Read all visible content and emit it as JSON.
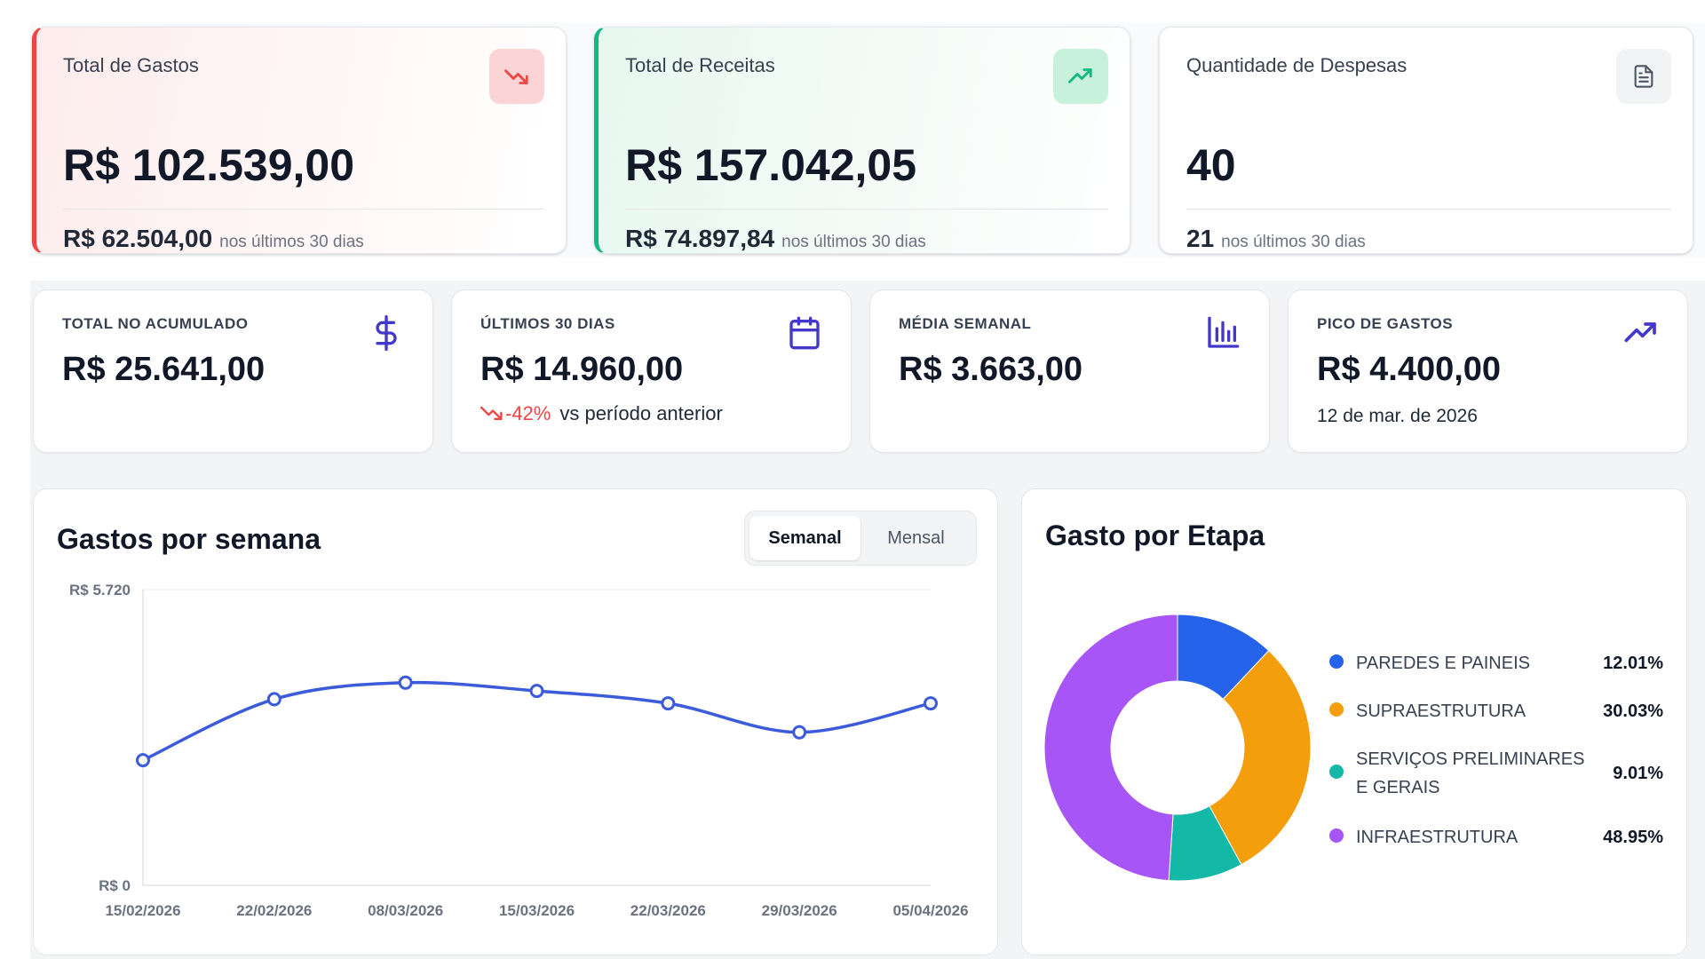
{
  "summary_cards": [
    {
      "label": "Total de Gastos",
      "value": "R$ 102.539,00",
      "sub_value": "R$ 62.504,00",
      "sub_note": "nos últimos 30 dias",
      "icon": "trending-down-icon",
      "accent": "#ef4444"
    },
    {
      "label": "Total de Receitas",
      "value": "R$ 157.042,05",
      "sub_value": "R$ 74.897,84",
      "sub_note": "nos últimos 30 dias",
      "icon": "trending-up-icon",
      "accent": "#10b981"
    },
    {
      "label": "Quantidade de Despesas",
      "value": "40",
      "sub_value": "21",
      "sub_note": "nos últimos 30 dias",
      "icon": "document-icon",
      "accent": "#6b7280"
    }
  ],
  "kpis": [
    {
      "label": "TOTAL NO ACUMULADO",
      "value": "R$ 25.641,00",
      "icon": "dollar-icon"
    },
    {
      "label": "ÚLTIMOS 30 DIAS",
      "value": "R$ 14.960,00",
      "change": "-42%",
      "change_note": "vs período anterior",
      "icon": "calendar-icon"
    },
    {
      "label": "MÉDIA SEMANAL",
      "value": "R$ 3.663,00",
      "icon": "bar-chart-icon"
    },
    {
      "label": "PICO DE GASTOS",
      "value": "R$ 4.400,00",
      "note": "12 de mar. de 2026",
      "icon": "trending-up-icon"
    }
  ],
  "colors": {
    "accent_purple": "#4338ca",
    "line_blue": "#3b5bdb",
    "negative": "#ef4444"
  },
  "weekly_chart": {
    "title": "Gastos por semana",
    "toggle": {
      "options": [
        "Semanal",
        "Mensal"
      ],
      "selected": "Semanal"
    },
    "y_labels": [
      "R$ 5.720",
      "R$ 0"
    ]
  },
  "stage_chart": {
    "title": "Gasto por Etapa"
  },
  "chart_data": [
    {
      "type": "line",
      "title": "Gastos por semana",
      "x": [
        "15/02/2026",
        "22/02/2026",
        "08/03/2026",
        "15/03/2026",
        "22/03/2026",
        "29/03/2026",
        "05/04/2026"
      ],
      "series": [
        {
          "values": [
            2420,
            3600,
            3920,
            3760,
            3520,
            2960,
            3520
          ]
        }
      ],
      "ylim": [
        0,
        5720
      ],
      "y_tick_labels": [
        "R$ 5.720",
        "R$ 0"
      ],
      "grid": false,
      "color": "#3b5bdb"
    },
    {
      "type": "pie",
      "title": "Gasto por Etapa",
      "donut": true,
      "categories": [
        "PAREDES E PAINEIS",
        "SUPRAESTRUTURA",
        "SERVIÇOS PRELIMINARES E GERAIS",
        "INFRAESTRUTURA"
      ],
      "values": [
        12.01,
        30.03,
        9.01,
        48.95
      ],
      "labels": [
        "12.01%",
        "30.03%",
        "9.01%",
        "48.95%"
      ],
      "colors": [
        "#2563eb",
        "#f59e0b",
        "#14b8a6",
        "#a855f7"
      ],
      "legend": "right"
    }
  ]
}
